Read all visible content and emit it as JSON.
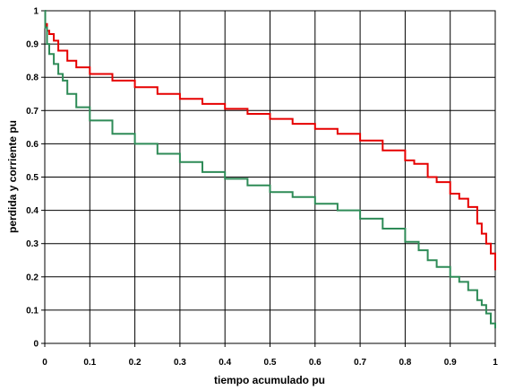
{
  "chart_data": {
    "type": "line",
    "title": "",
    "xlabel": "tiempo acumulado pu",
    "ylabel": "perdida y corriente pu",
    "xlim": [
      0,
      1
    ],
    "ylim": [
      0,
      1
    ],
    "grid": true,
    "legend": "none",
    "x_ticks": [
      "0",
      "0.1",
      "0.2",
      "0.3",
      "0.4",
      "0.5",
      "0.6",
      "0.7",
      "0.8",
      "0.9",
      "1"
    ],
    "y_ticks": [
      "0",
      "0.1",
      "0.2",
      "0.3",
      "0.4",
      "0.5",
      "0.6",
      "0.7",
      "0.8",
      "0.9",
      "1"
    ],
    "series": [
      {
        "color": "#e60000",
        "x": [
          0,
          0.001,
          0.005,
          0.01,
          0.02,
          0.03,
          0.05,
          0.07,
          0.1,
          0.15,
          0.2,
          0.25,
          0.3,
          0.35,
          0.4,
          0.45,
          0.5,
          0.55,
          0.6,
          0.65,
          0.7,
          0.75,
          0.8,
          0.82,
          0.85,
          0.87,
          0.9,
          0.92,
          0.94,
          0.96,
          0.97,
          0.98,
          0.99,
          1.0
        ],
        "y": [
          0.97,
          0.96,
          0.94,
          0.93,
          0.91,
          0.88,
          0.85,
          0.83,
          0.81,
          0.79,
          0.77,
          0.75,
          0.735,
          0.72,
          0.705,
          0.69,
          0.675,
          0.66,
          0.645,
          0.63,
          0.61,
          0.58,
          0.55,
          0.54,
          0.5,
          0.485,
          0.45,
          0.435,
          0.41,
          0.36,
          0.33,
          0.3,
          0.27,
          0.22
        ]
      },
      {
        "color": "#2e8b57",
        "x": [
          0,
          0.001,
          0.005,
          0.01,
          0.02,
          0.03,
          0.04,
          0.05,
          0.07,
          0.1,
          0.15,
          0.2,
          0.25,
          0.3,
          0.35,
          0.4,
          0.45,
          0.5,
          0.55,
          0.6,
          0.65,
          0.7,
          0.75,
          0.8,
          0.83,
          0.85,
          0.87,
          0.9,
          0.92,
          0.94,
          0.96,
          0.97,
          0.98,
          0.99,
          1.0
        ],
        "y": [
          1.0,
          0.95,
          0.9,
          0.87,
          0.84,
          0.81,
          0.79,
          0.75,
          0.71,
          0.67,
          0.63,
          0.6,
          0.57,
          0.545,
          0.515,
          0.495,
          0.475,
          0.455,
          0.44,
          0.42,
          0.4,
          0.375,
          0.345,
          0.305,
          0.28,
          0.25,
          0.23,
          0.2,
          0.185,
          0.16,
          0.13,
          0.115,
          0.09,
          0.06,
          0.045
        ]
      }
    ]
  }
}
